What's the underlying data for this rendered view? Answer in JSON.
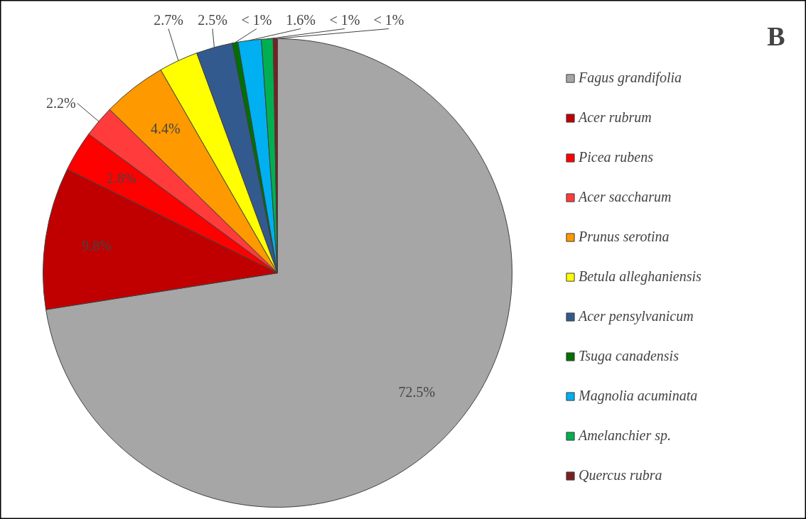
{
  "chart_data": {
    "type": "pie",
    "title": "B",
    "categories": [
      "Fagus grandifolia",
      "Acer rubrum",
      "Picea rubens",
      "Acer saccharum",
      "Prunus serotina",
      "Betula alleghaniensis",
      "Acer pensylvanicum",
      "Tsuga canadensis",
      "Magnolia acuminata",
      "Amelanchier sp.",
      "Quercus rubra"
    ],
    "values": [
      72.5,
      9.8,
      2.8,
      2.2,
      4.4,
      2.7,
      2.5,
      0.4,
      1.6,
      0.8,
      0.3
    ],
    "value_labels": [
      "72.5%",
      "9.8%",
      "2.8%",
      "2.2%",
      "4.4%",
      "2.7%",
      "2.5%",
      "< 1%",
      "1.6%",
      "< 1%",
      "< 1%"
    ],
    "colors": [
      "#a6a6a6",
      "#c00000",
      "#ff0000",
      "#ff3b3b",
      "#ff9900",
      "#ffff00",
      "#335a8e",
      "#007000",
      "#00b0f0",
      "#00b050",
      "#7b2020"
    ],
    "legend": "right"
  }
}
